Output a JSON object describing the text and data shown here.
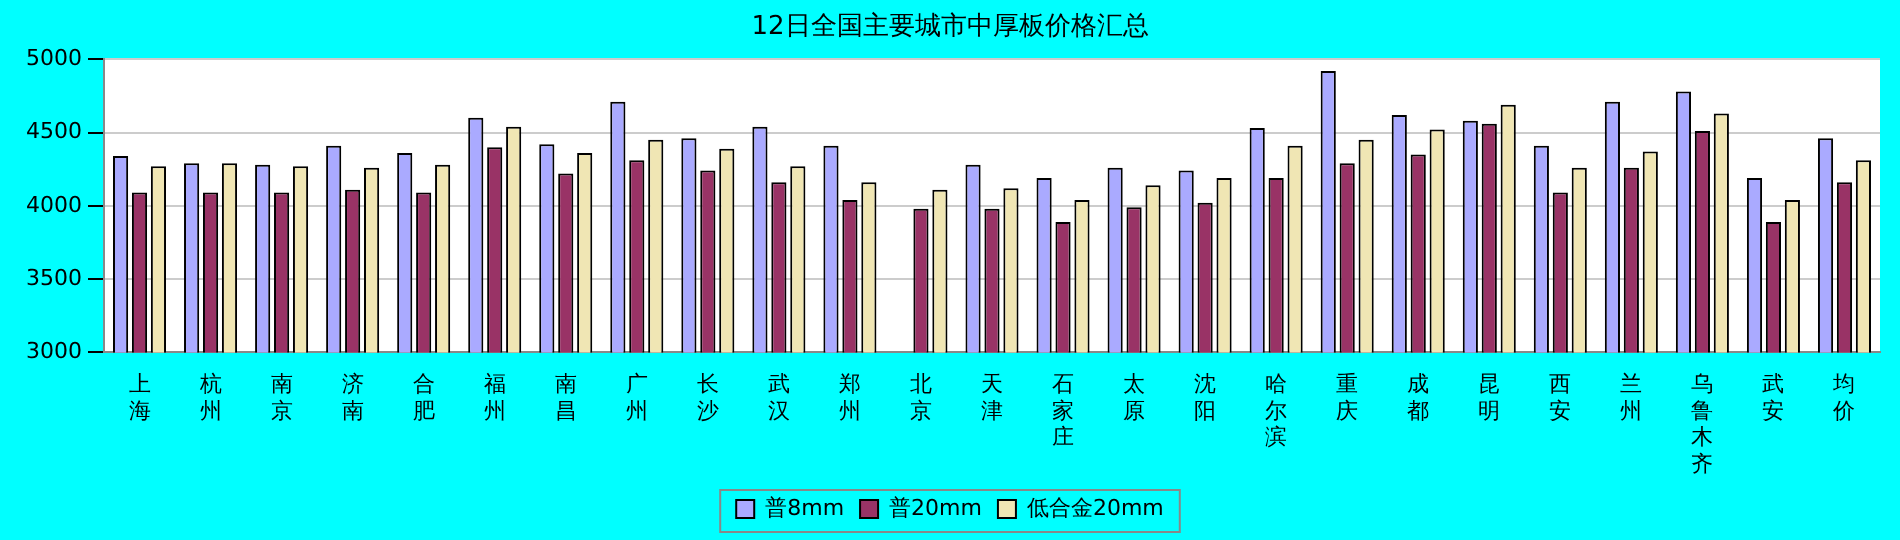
{
  "chart_data": {
    "type": "bar",
    "title": "12日全国主要城市中厚板价格汇总",
    "categories": [
      "上海",
      "杭州",
      "南京",
      "济南",
      "合肥",
      "福州",
      "南昌",
      "广州",
      "长沙",
      "武汉",
      "郑州",
      "北京",
      "天津",
      "石家庄",
      "太原",
      "沈阳",
      "哈尔滨",
      "重庆",
      "成都",
      "昆明",
      "西安",
      "兰州",
      "乌鲁木齐",
      "武安",
      "均价"
    ],
    "series": [
      {
        "name": "普8mm",
        "color": "#aaaaff",
        "values": [
          4340,
          4290,
          4280,
          4410,
          4360,
          4600,
          4420,
          4710,
          4460,
          4540,
          4410,
          null,
          4280,
          4190,
          4260,
          4240,
          4530,
          4920,
          4620,
          4580,
          4410,
          4710,
          4780,
          4190,
          4460
        ]
      },
      {
        "name": "普20mm",
        "color": "#993366",
        "values": [
          4090,
          4090,
          4090,
          4110,
          4090,
          4400,
          4220,
          4310,
          4240,
          4160,
          4040,
          3980,
          3980,
          3890,
          3990,
          4020,
          4190,
          4290,
          4350,
          4560,
          4090,
          4260,
          4510,
          3890,
          4160
        ]
      },
      {
        "name": "低合金20mm",
        "color": "#f0e6b4",
        "values": [
          4270,
          4290,
          4270,
          4260,
          4280,
          4540,
          4360,
          4450,
          4390,
          4270,
          4160,
          4110,
          4120,
          4040,
          4140,
          4190,
          4410,
          4450,
          4520,
          4690,
          4260,
          4370,
          4630,
          4040,
          4310
        ]
      }
    ],
    "ylim": [
      3000,
      5000
    ],
    "yticks": [
      3000,
      3500,
      4000,
      4500,
      5000
    ],
    "grid": "y",
    "legend": "bottom"
  }
}
